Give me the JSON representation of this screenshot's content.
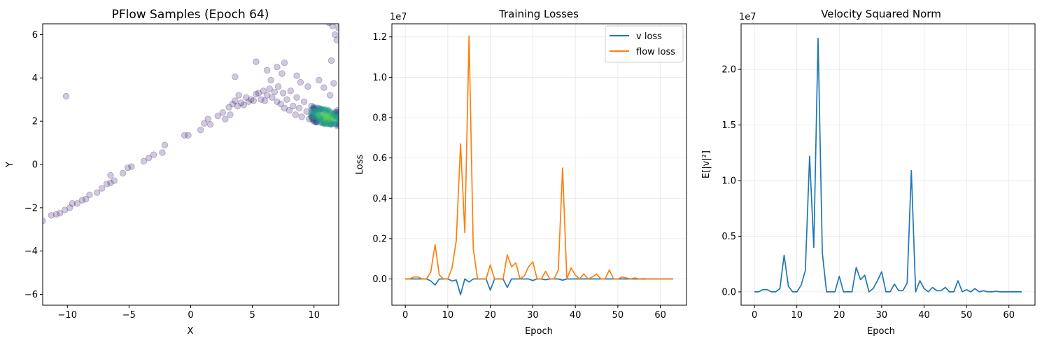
{
  "figure": {
    "background": "#ffffff"
  },
  "chart_data": [
    {
      "type": "scatter",
      "title": "PFlow Samples (Epoch 64)",
      "xlabel": "X",
      "ylabel": "Y",
      "xlim": [
        -12,
        12
      ],
      "ylim": [
        -6.5,
        6.5
      ],
      "xticks": [
        -10,
        -5,
        0,
        5,
        10
      ],
      "xtick_labels": [
        "−10",
        "−5",
        "0",
        "5",
        "10"
      ],
      "yticks": [
        -6,
        -4,
        -2,
        0,
        2,
        4,
        6
      ],
      "ytick_labels": [
        "−6",
        "−4",
        "−2",
        "0",
        "2",
        "4",
        "6"
      ],
      "grid": false,
      "colormap": "viridis",
      "marker_color": "#482878",
      "alpha": 0.25,
      "points": [
        [
          -12.0,
          -2.6
        ],
        [
          -11.3,
          -2.35
        ],
        [
          -10.9,
          -2.3
        ],
        [
          -10.6,
          -2.25
        ],
        [
          -10.2,
          -2.1
        ],
        [
          -9.8,
          -2.0
        ],
        [
          -9.6,
          -1.8
        ],
        [
          -9.2,
          -1.8
        ],
        [
          -8.8,
          -1.65
        ],
        [
          -8.5,
          -1.6
        ],
        [
          -8.2,
          -1.4
        ],
        [
          -7.6,
          -1.3
        ],
        [
          -7.2,
          -1.1
        ],
        [
          -6.8,
          -0.9
        ],
        [
          -6.5,
          -0.85
        ],
        [
          -6.2,
          -0.75
        ],
        [
          -6.5,
          -0.5
        ],
        [
          -5.5,
          -0.4
        ],
        [
          -5.1,
          -0.15
        ],
        [
          -4.8,
          -0.1
        ],
        [
          -3.8,
          0.15
        ],
        [
          -3.4,
          0.3
        ],
        [
          -3.0,
          0.45
        ],
        [
          -2.3,
          0.55
        ],
        [
          -2.1,
          0.9
        ],
        [
          -0.5,
          1.35
        ],
        [
          -0.2,
          1.35
        ],
        [
          0.8,
          1.6
        ],
        [
          1.1,
          1.9
        ],
        [
          1.4,
          2.1
        ],
        [
          1.6,
          1.85
        ],
        [
          2.2,
          2.25
        ],
        [
          2.6,
          2.4
        ],
        [
          2.8,
          2.1
        ],
        [
          3.1,
          2.65
        ],
        [
          3.2,
          2.3
        ],
        [
          3.4,
          2.8
        ],
        [
          3.6,
          2.95
        ],
        [
          3.8,
          2.7
        ],
        [
          3.9,
          3.2
        ],
        [
          4.1,
          2.85
        ],
        [
          4.3,
          2.75
        ],
        [
          4.5,
          3.1
        ],
        [
          4.7,
          2.9
        ],
        [
          4.9,
          3.0
        ],
        [
          5.1,
          2.95
        ],
        [
          5.3,
          3.25
        ],
        [
          5.5,
          3.3
        ],
        [
          5.7,
          3.0
        ],
        [
          5.9,
          3.4
        ],
        [
          6.0,
          2.95
        ],
        [
          6.2,
          3.2
        ],
        [
          6.4,
          3.5
        ],
        [
          6.6,
          3.1
        ],
        [
          6.8,
          3.35
        ],
        [
          7.0,
          2.9
        ],
        [
          7.1,
          3.6
        ],
        [
          7.3,
          2.8
        ],
        [
          7.5,
          3.3
        ],
        [
          7.6,
          2.6
        ],
        [
          7.8,
          3.0
        ],
        [
          8.0,
          2.5
        ],
        [
          8.1,
          3.4
        ],
        [
          8.3,
          2.7
        ],
        [
          8.5,
          2.3
        ],
        [
          8.6,
          3.1
        ],
        [
          8.8,
          2.6
        ],
        [
          9.0,
          2.2
        ],
        [
          9.2,
          2.9
        ],
        [
          9.4,
          2.45
        ],
        [
          9.6,
          2.1
        ],
        [
          9.8,
          2.7
        ],
        [
          10.0,
          2.35
        ],
        [
          10.2,
          1.95
        ],
        [
          10.4,
          2.6
        ],
        [
          10.6,
          2.2
        ],
        [
          10.8,
          1.9
        ],
        [
          11.0,
          2.4
        ],
        [
          11.2,
          2.1
        ],
        [
          11.4,
          1.85
        ],
        [
          11.6,
          2.3
        ],
        [
          11.8,
          2.05
        ],
        [
          11.9,
          2.5
        ],
        [
          3.6,
          4.05
        ],
        [
          5.3,
          4.75
        ],
        [
          6.2,
          4.35
        ],
        [
          7.0,
          4.5
        ],
        [
          7.6,
          4.7
        ],
        [
          8.6,
          4.1
        ],
        [
          10.4,
          3.9
        ],
        [
          10.8,
          3.55
        ],
        [
          11.3,
          3.2
        ],
        [
          11.6,
          3.75
        ],
        [
          -10.1,
          3.15
        ],
        [
          11.2,
          6.55
        ],
        [
          11.7,
          6.0
        ],
        [
          11.85,
          5.75
        ],
        [
          11.4,
          4.8
        ],
        [
          12.0,
          6.3
        ],
        [
          11.5,
          6.4
        ],
        [
          9.5,
          3.6
        ],
        [
          8.9,
          3.8
        ],
        [
          7.4,
          4.2
        ],
        [
          6.5,
          3.9
        ]
      ],
      "density_core": {
        "x": 11.0,
        "y": 2.2,
        "spread_x": 0.9,
        "spread_y": 0.35
      }
    },
    {
      "type": "line",
      "title": "Training Losses",
      "xlabel": "Epoch",
      "ylabel": "Loss",
      "y_offset_label": "1e7",
      "xlim": [
        -3.15,
        66.15
      ],
      "ylim": [
        -1.3,
        12.65
      ],
      "xticks": [
        0,
        10,
        20,
        30,
        40,
        50,
        60
      ],
      "yticks": [
        0.0,
        2.0,
        4.0,
        6.0,
        8.0,
        10.0,
        12.0
      ],
      "ytick_labels": [
        "0.0",
        "0.2",
        "0.4",
        "0.6",
        "0.8",
        "1.0",
        "1.2"
      ],
      "grid": true,
      "legend": {
        "position": "top-right"
      },
      "x": [
        0,
        1,
        2,
        3,
        4,
        5,
        6,
        7,
        8,
        9,
        10,
        11,
        12,
        13,
        14,
        15,
        16,
        17,
        18,
        19,
        20,
        21,
        22,
        23,
        24,
        25,
        26,
        27,
        28,
        29,
        30,
        31,
        32,
        33,
        34,
        35,
        36,
        37,
        38,
        39,
        40,
        41,
        42,
        43,
        44,
        45,
        46,
        47,
        48,
        49,
        50,
        51,
        52,
        53,
        54,
        55,
        56,
        57,
        58,
        59,
        60,
        61,
        62,
        63
      ],
      "series": [
        {
          "name": "v loss",
          "color": "#1f77b4",
          "values": [
            0.0,
            0.0,
            0.0,
            0.0,
            0.0,
            0.0,
            -0.1,
            -0.3,
            0.0,
            0.0,
            0.0,
            -0.1,
            -0.05,
            -0.78,
            0.0,
            -0.15,
            0.0,
            0.0,
            0.0,
            0.0,
            -0.55,
            0.0,
            0.0,
            0.0,
            -0.42,
            0.0,
            0.0,
            0.0,
            0.0,
            0.0,
            -0.08,
            0.0,
            0.0,
            -0.04,
            0.0,
            0.0,
            0.0,
            -0.06,
            0.0,
            0.0,
            0.0,
            0.0,
            0.0,
            0.0,
            0.0,
            0.0,
            0.0,
            0.0,
            0.0,
            0.0,
            0.0,
            0.0,
            0.0,
            0.0,
            0.0,
            0.0,
            0.0,
            0.0,
            0.0,
            0.0,
            0.0,
            0.0,
            0.0,
            0.0
          ]
        },
        {
          "name": "flow loss",
          "color": "#ff7f0e",
          "values": [
            0.0,
            0.0,
            0.1,
            0.1,
            0.0,
            0.0,
            0.35,
            1.7,
            0.2,
            0.0,
            0.0,
            0.55,
            1.9,
            6.7,
            2.3,
            12.05,
            1.5,
            0.0,
            0.0,
            0.0,
            0.7,
            0.0,
            0.0,
            0.0,
            1.2,
            0.6,
            0.8,
            0.0,
            0.15,
            0.6,
            0.85,
            0.0,
            0.0,
            0.38,
            0.0,
            0.0,
            0.45,
            5.5,
            0.0,
            0.55,
            0.2,
            0.0,
            0.25,
            0.0,
            0.1,
            0.25,
            0.0,
            0.0,
            0.45,
            0.0,
            0.0,
            0.1,
            0.05,
            0.0,
            0.05,
            0.0,
            0.02,
            0.0,
            0.0,
            0.0,
            0.0,
            0.0,
            0.0,
            0.0
          ]
        }
      ]
    },
    {
      "type": "line",
      "title": "Velocity Squared Norm",
      "xlabel": "Epoch",
      "ylabel": "E[|v|²]",
      "y_offset_label": "1e7",
      "xlim": [
        -3.15,
        66.15
      ],
      "ylim": [
        -1.2,
        24.1
      ],
      "xticks": [
        0,
        10,
        20,
        30,
        40,
        50,
        60
      ],
      "yticks": [
        0,
        5,
        10,
        15,
        20
      ],
      "ytick_labels": [
        "0.0",
        "0.5",
        "1.0",
        "1.5",
        "2.0"
      ],
      "grid": true,
      "x": [
        0,
        1,
        2,
        3,
        4,
        5,
        6,
        7,
        8,
        9,
        10,
        11,
        12,
        13,
        14,
        15,
        16,
        17,
        18,
        19,
        20,
        21,
        22,
        23,
        24,
        25,
        26,
        27,
        28,
        29,
        30,
        31,
        32,
        33,
        34,
        35,
        36,
        37,
        38,
        39,
        40,
        41,
        42,
        43,
        44,
        45,
        46,
        47,
        48,
        49,
        50,
        51,
        52,
        53,
        54,
        55,
        56,
        57,
        58,
        59,
        60,
        61,
        62,
        63
      ],
      "series": [
        {
          "color": "#1f77b4",
          "values": [
            0.0,
            0.0,
            0.2,
            0.2,
            0.0,
            0.0,
            0.3,
            3.3,
            0.5,
            0.0,
            0.0,
            0.6,
            1.9,
            12.2,
            4.0,
            22.8,
            3.5,
            0.0,
            0.0,
            0.0,
            1.4,
            0.0,
            0.0,
            0.0,
            2.2,
            1.1,
            1.5,
            0.0,
            0.3,
            1.0,
            1.8,
            0.0,
            0.0,
            0.7,
            0.1,
            0.1,
            0.8,
            10.9,
            0.0,
            1.0,
            0.3,
            0.0,
            0.4,
            0.1,
            0.1,
            0.4,
            0.0,
            0.0,
            1.0,
            0.0,
            0.2,
            0.0,
            0.3,
            0.0,
            0.1,
            0.0,
            0.0,
            0.05,
            0.0,
            0.0,
            0.0,
            0.0,
            0.0,
            0.0
          ]
        }
      ]
    }
  ]
}
